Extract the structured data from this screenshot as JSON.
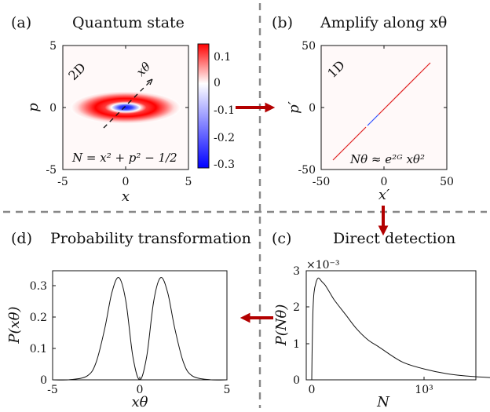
{
  "panels": {
    "a": {
      "label": "(a)",
      "title": "Quantum state",
      "dim_tag": "2D",
      "x_axis": "x",
      "y_axis": "p",
      "arrow_label": "xθ",
      "equation": "N = x² + p² − 1/2",
      "x_ticks": [
        "-5",
        "0",
        "5"
      ],
      "y_ticks": [
        "5",
        "0",
        "-5"
      ],
      "colorbar_ticks": [
        "0.1",
        "0",
        "-0.1",
        "-0.2",
        "-0.3"
      ],
      "colors": {
        "positive": "#ff0000",
        "zero": "#ffffff",
        "negative": "#0000ff"
      }
    },
    "b": {
      "label": "(b)",
      "title": "Amplify along xθ",
      "dim_tag": "1D",
      "x_axis": "x′",
      "y_axis": "p′",
      "equation": "Nθ ≈ e²ᴳ xθ²",
      "x_ticks": [
        "-50",
        "0",
        "50"
      ],
      "y_ticks": [
        "50",
        "0",
        "-50"
      ]
    },
    "c": {
      "label": "(c)",
      "title": "Direct detection",
      "x_axis": "N",
      "y_axis": "P(Nθ)",
      "x_ticks": [
        "0",
        "10³"
      ],
      "y_ticks": [
        "3",
        "2",
        "1",
        "0"
      ],
      "y_scale": "×10⁻³"
    },
    "d": {
      "label": "(d)",
      "title": "Probability transformation",
      "x_axis": "xθ",
      "y_axis": "P(xθ)",
      "x_ticks": [
        "-5",
        "0",
        "5"
      ],
      "y_ticks": [
        "0.3",
        "0.2",
        "0.1",
        "0"
      ]
    }
  },
  "arrow_color": "#b30000",
  "chart_data": [
    {
      "panel": "d",
      "type": "line",
      "xlim": [
        -5,
        5
      ],
      "ylim": [
        0,
        0.35
      ],
      "x": [
        -5,
        -4,
        -3,
        -2.5,
        -2,
        -1.6,
        -1.2,
        -0.8,
        -0.4,
        0,
        0.4,
        0.8,
        1.2,
        1.6,
        2,
        2.5,
        3,
        4,
        5
      ],
      "y": [
        0,
        0.0004,
        0.013,
        0.057,
        0.167,
        0.28,
        0.328,
        0.253,
        0.076,
        0,
        0.076,
        0.253,
        0.328,
        0.28,
        0.167,
        0.057,
        0.013,
        0.0004,
        0
      ]
    },
    {
      "panel": "c",
      "type": "line",
      "ylim": [
        0,
        0.003
      ],
      "x": [
        0,
        3,
        10,
        20,
        40,
        60,
        90,
        120,
        160,
        200,
        300,
        400,
        500,
        600,
        800,
        1000,
        1200,
        1400,
        1600,
        1730
      ],
      "y": [
        0,
        0.0007,
        0.0018,
        0.0024,
        0.0027,
        0.0028,
        0.0027,
        0.0026,
        0.0024,
        0.0022,
        0.0018,
        0.0014,
        0.0011,
        0.0009,
        0.0005,
        0.0003,
        0.00017,
        0.0001,
        6e-05,
        4e-05
      ]
    }
  ]
}
